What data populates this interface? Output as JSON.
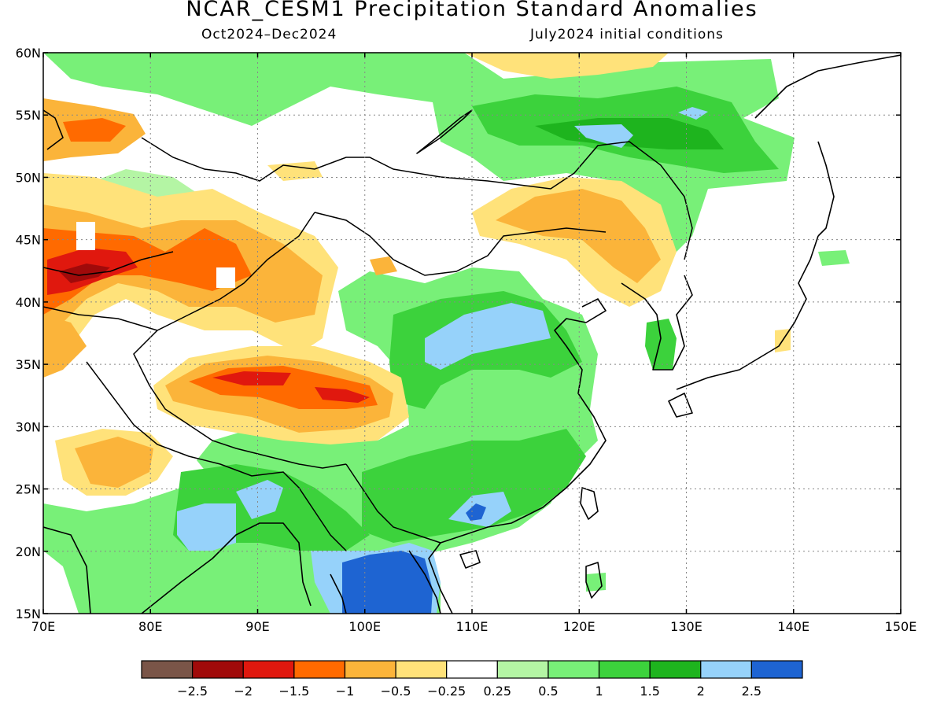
{
  "header": {
    "title": "NCAR_CESM1 Precipitation Standard Anomalies",
    "period": "Oct2024–Dec2024",
    "initial_conditions": "July2024 initial conditions"
  },
  "map": {
    "lon_range": [
      70,
      150
    ],
    "lat_range": [
      15,
      60
    ],
    "x_ticks": [
      "70E",
      "80E",
      "90E",
      "100E",
      "110E",
      "120E",
      "130E",
      "140E",
      "150E"
    ],
    "y_ticks": [
      "15N",
      "20N",
      "25N",
      "30N",
      "35N",
      "40N",
      "45N",
      "50N",
      "55N",
      "60N"
    ],
    "grid": "dotted"
  },
  "colorbar": {
    "colors": [
      "#7a5548",
      "#a00a0a",
      "#e0180e",
      "#ff6a00",
      "#fbb43a",
      "#ffe27a",
      "#ffffff",
      "#b4f5a4",
      "#78f078",
      "#3cd23c",
      "#1eb41e",
      "#96d2fa",
      "#1e64d2"
    ],
    "labels": [
      "−2.5",
      "−2",
      "−1.5",
      "−1",
      "−0.5",
      "−0.25",
      "0.25",
      "0.5",
      "1",
      "1.5",
      "2",
      "2.5"
    ]
  }
}
